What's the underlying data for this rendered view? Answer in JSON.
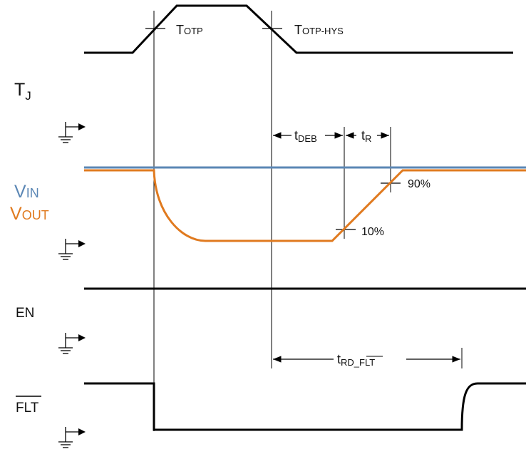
{
  "signals": {
    "tj": {
      "label": "T",
      "sub": "J"
    },
    "vin": {
      "label": "V",
      "sub": "IN",
      "color": "#5b87b5"
    },
    "vout": {
      "label": "V",
      "sub": "OUT",
      "color": "#e07a1f"
    },
    "en": {
      "label": "EN"
    },
    "flt": {
      "label": "FLT"
    }
  },
  "annotations": {
    "t_otp": {
      "main": "T",
      "sub": "OTP"
    },
    "t_otp_hys": {
      "main": "T",
      "sub": "OTP-HYS"
    },
    "t_deb": {
      "main": "t",
      "sub": "DEB"
    },
    "t_r": {
      "main": "t",
      "sub": "R"
    },
    "t_rd_flt": {
      "main": "t",
      "sub_prefix": "RD_",
      "sub_overbar": "FLT"
    },
    "pct_90": "90%",
    "pct_10": "10%"
  },
  "icons": [
    "ground-arrow-icon"
  ],
  "colors": {
    "trace": "#000000",
    "vin": "#5b87b5",
    "vout": "#e07a1f"
  }
}
